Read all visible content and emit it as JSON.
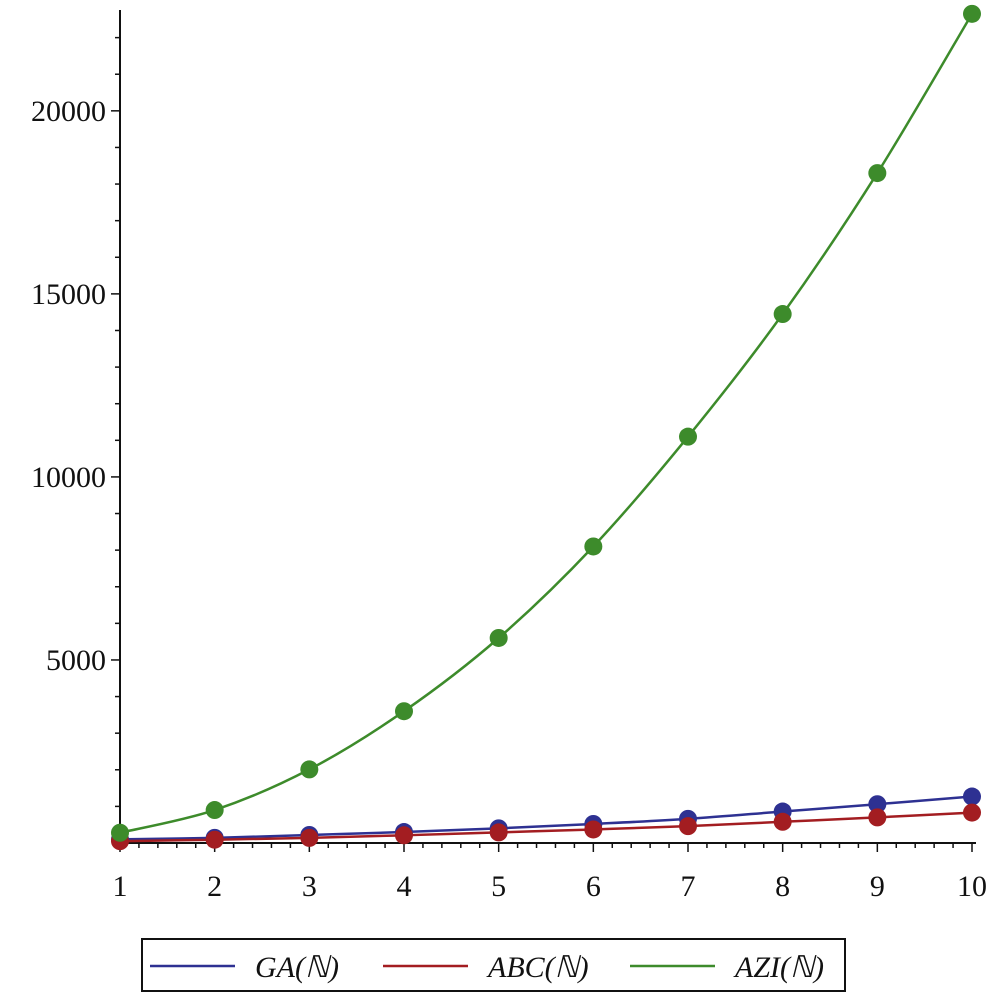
{
  "chart_data": {
    "type": "line",
    "title": "",
    "xlabel": "",
    "ylabel": "",
    "x": [
      1,
      2,
      3,
      4,
      5,
      6,
      7,
      8,
      9,
      10
    ],
    "xlim": [
      1,
      10
    ],
    "ylim": [
      0,
      22700
    ],
    "x_ticks": [
      "1",
      "2",
      "3",
      "4",
      "5",
      "6",
      "7",
      "8",
      "9",
      "10"
    ],
    "y_ticks": [
      {
        "value": 5000,
        "label": "5000"
      },
      {
        "value": 10000,
        "label": "10000"
      },
      {
        "value": 15000,
        "label": "15000"
      },
      {
        "value": 20000,
        "label": "20000"
      }
    ],
    "grid": false,
    "legend_position": "bottom",
    "series": [
      {
        "name": "GA(ℕ)",
        "color": "#2e3192",
        "values": [
          100,
          140,
          220,
          300,
          400,
          520,
          660,
          860,
          1060,
          1270
        ]
      },
      {
        "name": "ABC(ℕ)",
        "color": "#a31d21",
        "values": [
          50,
          90,
          140,
          210,
          290,
          370,
          460,
          580,
          700,
          830
        ]
      },
      {
        "name": "AZI(ℕ)",
        "color": "#3d8b2b",
        "values": [
          280,
          900,
          2010,
          3600,
          5600,
          8100,
          11100,
          14450,
          18300,
          22650
        ]
      }
    ]
  }
}
